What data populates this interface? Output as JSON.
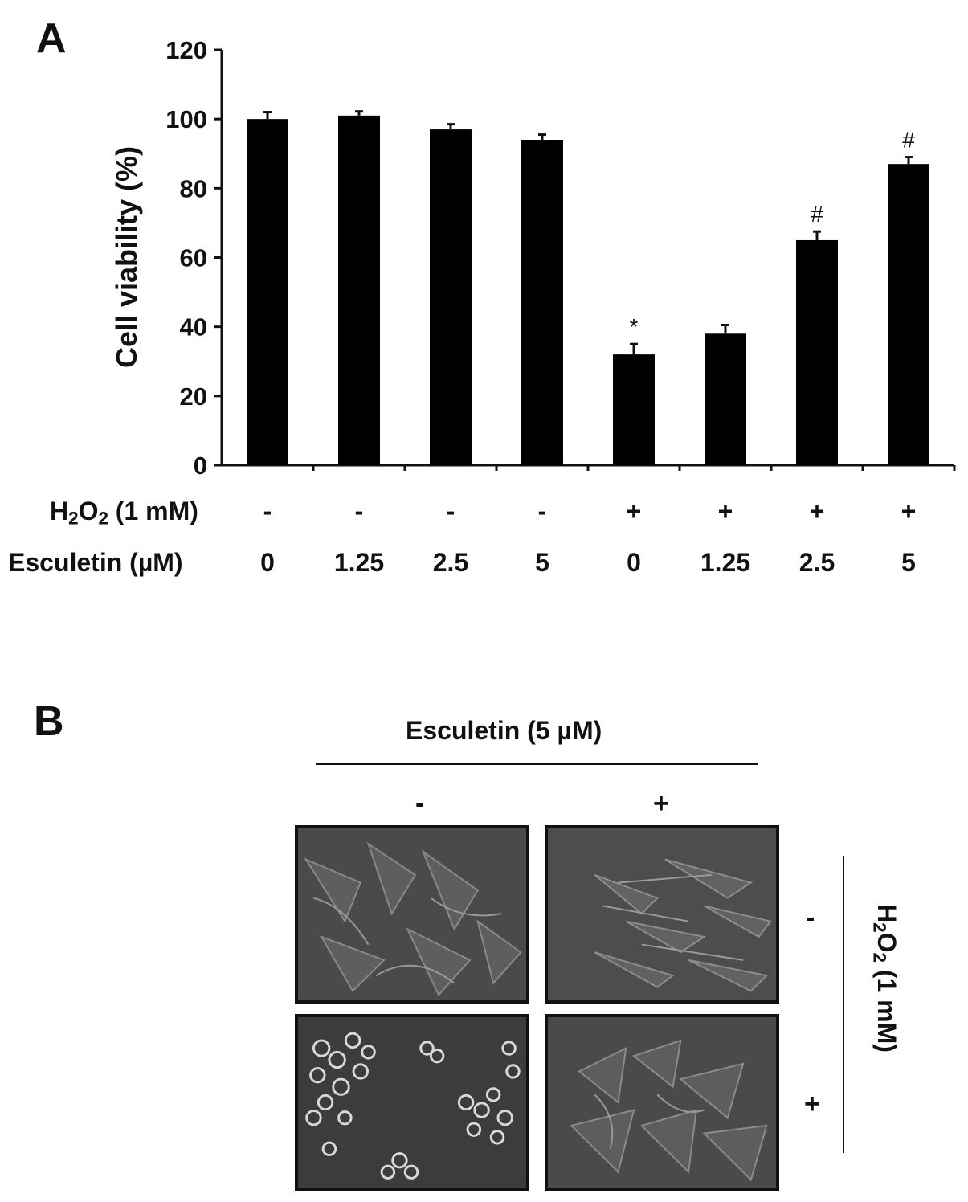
{
  "panel_a_letter": "A",
  "panel_b_letter": "B",
  "chart_data": {
    "type": "bar",
    "ylabel": "Cell viability (%)",
    "ylim": [
      0,
      120
    ],
    "yticks": [
      "0",
      "20",
      "40",
      "60",
      "80",
      "100",
      "120"
    ],
    "grid": false,
    "bar_color": "#000000",
    "rows": [
      {
        "label_main": "H",
        "label_sub1": "2",
        "label_mid": "O",
        "label_sub2": "2",
        "label_rest": " (1 mM)",
        "values": [
          "-",
          "-",
          "-",
          "-",
          "+",
          "+",
          "+",
          "+"
        ]
      },
      {
        "label": "Esculetin (µM)",
        "values": [
          "0",
          "1.25",
          "2.5",
          "5",
          "0",
          "1.25",
          "2.5",
          "5"
        ]
      }
    ],
    "values": [
      100,
      101,
      97,
      94,
      32,
      38,
      65,
      87
    ],
    "errors": [
      2,
      1.2,
      1.5,
      1.5,
      3,
      2.5,
      2.5,
      2
    ],
    "markers": [
      "",
      "",
      "",
      "",
      "*",
      "",
      "#",
      "#"
    ]
  },
  "panel_b": {
    "header": "Esculetin (5 µM)",
    "col_signs": [
      "-",
      "+"
    ],
    "row_signs": [
      "-",
      "+"
    ],
    "side_label": {
      "main": "H",
      "sub1": "2",
      "mid": "O",
      "sub2": "2",
      "rest": " (1 mM)"
    },
    "image_descriptions": [
      "Control cells: spread, elongated adherent cells",
      "Esculetin only: elongated adherent cells",
      "H2O2 only: rounded, detached bright cells",
      "Esculetin + H2O2: mostly spread adherent cells"
    ]
  }
}
